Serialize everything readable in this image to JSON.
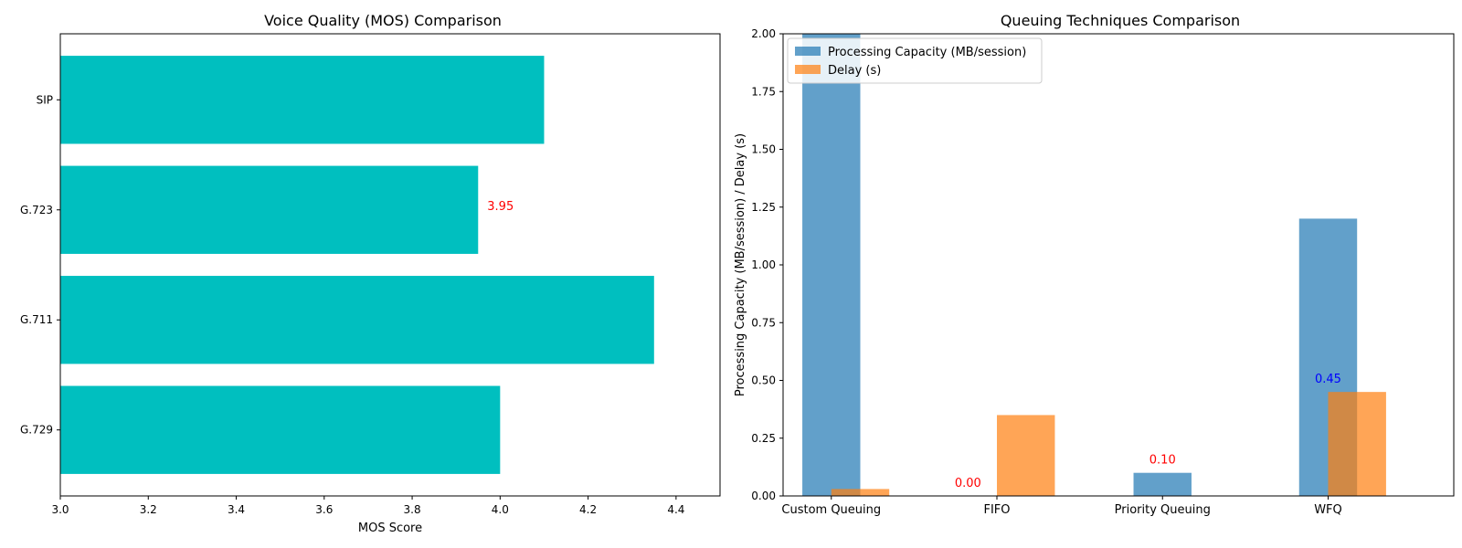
{
  "chart_data": [
    {
      "type": "bar",
      "orientation": "horizontal",
      "title": "Voice Quality (MOS) Comparison",
      "xlabel": "MOS Score",
      "ylabel": "",
      "categories": [
        "SIP",
        "G.723",
        "G.711",
        "G.729"
      ],
      "values": [
        4.1,
        3.95,
        4.35,
        4.0
      ],
      "xlim": [
        3.0,
        4.5
      ],
      "xticks": [
        "3.0",
        "3.2",
        "3.4",
        "3.6",
        "3.8",
        "4.0",
        "4.2",
        "4.4"
      ],
      "bar_color": "#00bfbf",
      "annotations": [
        {
          "category": "G.723",
          "text": "3.95",
          "color": "#ff0000"
        }
      ],
      "grid": false
    },
    {
      "type": "bar",
      "title": "Queuing Techniques Comparison",
      "xlabel": "",
      "ylabel": "Processing Capacity (MB/session) / Delay (s)",
      "categories": [
        "Custom Queuing",
        "FIFO",
        "Priority Queuing",
        "WFQ"
      ],
      "series": [
        {
          "name": "Processing Capacity (MB/session)",
          "values": [
            2.0,
            0.0,
            0.1,
            1.2
          ],
          "color": "#1f77b4"
        },
        {
          "name": "Delay (s)",
          "values": [
            0.03,
            0.35,
            0.0,
            0.45
          ],
          "color": "#ff7f0e"
        }
      ],
      "ylim": [
        0,
        2.0
      ],
      "yticks": [
        "0.00",
        "0.25",
        "0.50",
        "0.75",
        "1.00",
        "1.25",
        "1.50",
        "1.75",
        "2.00"
      ],
      "annotations": [
        {
          "category": "FIFO",
          "text": "0.00",
          "color": "#ff0000"
        },
        {
          "category": "Priority Queuing",
          "text": "0.10",
          "color": "#ff0000"
        },
        {
          "category": "WFQ",
          "text": "0.45",
          "color": "#0000ff"
        }
      ],
      "legend": "top-left",
      "grid": false
    }
  ]
}
